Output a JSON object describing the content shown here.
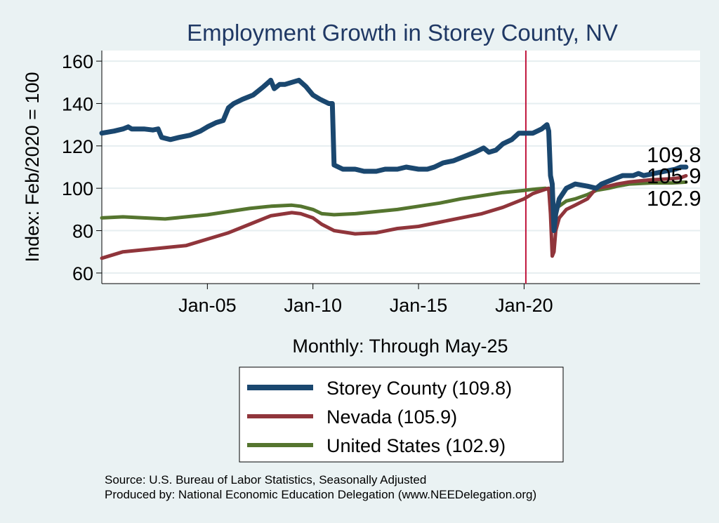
{
  "chart_data": {
    "type": "line",
    "title": "Employment Growth in Storey  County, NV",
    "xlabel": "Monthly: Through May-25",
    "ylabel": "Index: Feb/2020 = 100",
    "xlim": [
      "2000-01",
      "2028-05"
    ],
    "ylim": [
      55,
      165
    ],
    "y_ticks": [
      60,
      80,
      100,
      120,
      140,
      160
    ],
    "x_ticks": [
      {
        "date": "2005-01",
        "label": "Jan-05"
      },
      {
        "date": "2010-01",
        "label": "Jan-10"
      },
      {
        "date": "2015-01",
        "label": "Jan-15"
      },
      {
        "date": "2020-01",
        "label": "Jan-20"
      }
    ],
    "reference_line": {
      "date": "2020-02",
      "color": "#c0143c"
    },
    "grid": true,
    "legend_position": "bottom",
    "series": [
      {
        "name": "Storey  County (109.8)",
        "end_label": "109.8",
        "color": "#1a476f",
        "width": 7,
        "points": [
          [
            "2000-01",
            126
          ],
          [
            "2000-08",
            127
          ],
          [
            "2001-01",
            128
          ],
          [
            "2001-04",
            129
          ],
          [
            "2001-06",
            128
          ],
          [
            "2002-01",
            128
          ],
          [
            "2002-06",
            127.5
          ],
          [
            "2002-09",
            128
          ],
          [
            "2002-11",
            124
          ],
          [
            "2003-04",
            123
          ],
          [
            "2003-09",
            124
          ],
          [
            "2004-03",
            125
          ],
          [
            "2004-09",
            127
          ],
          [
            "2005-01",
            129
          ],
          [
            "2005-06",
            131
          ],
          [
            "2005-10",
            132
          ],
          [
            "2006-01",
            138
          ],
          [
            "2006-04",
            140
          ],
          [
            "2006-09",
            142
          ],
          [
            "2007-03",
            144
          ],
          [
            "2007-09",
            148
          ],
          [
            "2008-01",
            151
          ],
          [
            "2008-03",
            147
          ],
          [
            "2008-06",
            149
          ],
          [
            "2008-09",
            149
          ],
          [
            "2009-01",
            150
          ],
          [
            "2009-05",
            151
          ],
          [
            "2009-09",
            148
          ],
          [
            "2010-01",
            144
          ],
          [
            "2010-05",
            142
          ],
          [
            "2010-10",
            140
          ],
          [
            "2010-12",
            140
          ],
          [
            "2011-01",
            111
          ],
          [
            "2011-06",
            109
          ],
          [
            "2012-01",
            109
          ],
          [
            "2012-06",
            108
          ],
          [
            "2013-01",
            108
          ],
          [
            "2013-06",
            109
          ],
          [
            "2014-01",
            109
          ],
          [
            "2014-06",
            110
          ],
          [
            "2015-01",
            109
          ],
          [
            "2015-06",
            109
          ],
          [
            "2015-10",
            110
          ],
          [
            "2016-03",
            112
          ],
          [
            "2016-09",
            113
          ],
          [
            "2017-03",
            115
          ],
          [
            "2017-09",
            117
          ],
          [
            "2018-02",
            119
          ],
          [
            "2018-05",
            117
          ],
          [
            "2018-09",
            118
          ],
          [
            "2019-01",
            121
          ],
          [
            "2019-06",
            123
          ],
          [
            "2019-10",
            126
          ],
          [
            "2020-06",
            126
          ],
          [
            "2020-11",
            128
          ],
          [
            "2021-02",
            130
          ],
          [
            "2021-03",
            127
          ],
          [
            "2021-04",
            106
          ],
          [
            "2021-05",
            102
          ],
          [
            "2021-06",
            80
          ],
          [
            "2021-07",
            88
          ],
          [
            "2021-09",
            95
          ],
          [
            "2022-01",
            100
          ],
          [
            "2022-06",
            102
          ],
          [
            "2023-01",
            101
          ],
          [
            "2023-06",
            100
          ],
          [
            "2023-09",
            102
          ],
          [
            "2024-03",
            104
          ],
          [
            "2024-09",
            106
          ],
          [
            "2025-03",
            106
          ],
          [
            "2025-06",
            107
          ],
          [
            "2025-09",
            106
          ],
          [
            "2026-03",
            107
          ],
          [
            "2026-09",
            108
          ],
          [
            "2027-03",
            109
          ],
          [
            "2027-06",
            110
          ],
          [
            "2027-09",
            110
          ]
        ]
      },
      {
        "name": "Nevada (105.9)",
        "end_label": "105.9",
        "color": "#90353b",
        "width": 5,
        "points": [
          [
            "2000-01",
            67
          ],
          [
            "2001-01",
            70
          ],
          [
            "2002-01",
            71
          ],
          [
            "2003-01",
            72
          ],
          [
            "2004-01",
            73
          ],
          [
            "2005-01",
            76
          ],
          [
            "2006-01",
            79
          ],
          [
            "2007-01",
            83
          ],
          [
            "2008-01",
            87
          ],
          [
            "2009-01",
            88.5
          ],
          [
            "2009-06",
            88
          ],
          [
            "2010-01",
            86
          ],
          [
            "2010-06",
            83
          ],
          [
            "2011-01",
            80
          ],
          [
            "2012-01",
            78.5
          ],
          [
            "2013-01",
            79
          ],
          [
            "2014-01",
            81
          ],
          [
            "2015-01",
            82
          ],
          [
            "2016-01",
            84
          ],
          [
            "2017-01",
            86
          ],
          [
            "2018-01",
            88
          ],
          [
            "2019-01",
            91
          ],
          [
            "2020-01",
            95
          ],
          [
            "2020-06",
            97.5
          ],
          [
            "2021-01",
            99.5
          ],
          [
            "2021-03",
            100
          ],
          [
            "2021-04",
            88
          ],
          [
            "2021-05",
            68
          ],
          [
            "2021-06",
            70
          ],
          [
            "2021-07",
            80
          ],
          [
            "2021-09",
            86
          ],
          [
            "2022-01",
            90
          ],
          [
            "2022-06",
            92
          ],
          [
            "2023-01",
            95
          ],
          [
            "2023-06",
            100
          ],
          [
            "2024-01",
            101
          ],
          [
            "2024-06",
            102
          ],
          [
            "2025-01",
            103
          ],
          [
            "2026-01",
            104
          ],
          [
            "2027-01",
            104.5
          ],
          [
            "2027-06",
            105
          ],
          [
            "2027-09",
            105.9
          ]
        ]
      },
      {
        "name": "United States (102.9)",
        "end_label": "102.9",
        "color": "#55752f",
        "width": 5,
        "points": [
          [
            "2000-01",
            86
          ],
          [
            "2001-01",
            86.5
          ],
          [
            "2002-01",
            86
          ],
          [
            "2003-01",
            85.5
          ],
          [
            "2004-01",
            86.5
          ],
          [
            "2005-01",
            87.5
          ],
          [
            "2006-01",
            89
          ],
          [
            "2007-01",
            90.5
          ],
          [
            "2008-01",
            91.5
          ],
          [
            "2009-01",
            92
          ],
          [
            "2009-06",
            91.5
          ],
          [
            "2010-01",
            90
          ],
          [
            "2010-06",
            88
          ],
          [
            "2011-01",
            87.5
          ],
          [
            "2012-01",
            88
          ],
          [
            "2013-01",
            89
          ],
          [
            "2014-01",
            90
          ],
          [
            "2015-01",
            91.5
          ],
          [
            "2016-01",
            93
          ],
          [
            "2017-01",
            95
          ],
          [
            "2018-01",
            96.5
          ],
          [
            "2019-01",
            98
          ],
          [
            "2020-01",
            99
          ],
          [
            "2020-06",
            99.5
          ],
          [
            "2021-01",
            100
          ],
          [
            "2021-03",
            99.5
          ],
          [
            "2021-05",
            86
          ],
          [
            "2021-06",
            84
          ],
          [
            "2021-08",
            91
          ],
          [
            "2022-01",
            94
          ],
          [
            "2022-06",
            95
          ],
          [
            "2023-01",
            97
          ],
          [
            "2023-06",
            99
          ],
          [
            "2024-01",
            100
          ],
          [
            "2024-06",
            101
          ],
          [
            "2025-01",
            102
          ],
          [
            "2026-01",
            102.5
          ],
          [
            "2027-01",
            102.5
          ],
          [
            "2027-09",
            102.9
          ]
        ]
      }
    ]
  },
  "notes": {
    "source": "Source: U.S. Bureau of Labor Statistics, Seasonally Adjusted",
    "producer": "Produced by: National Economic Education Delegation (www.NEEDelegation.org)"
  }
}
